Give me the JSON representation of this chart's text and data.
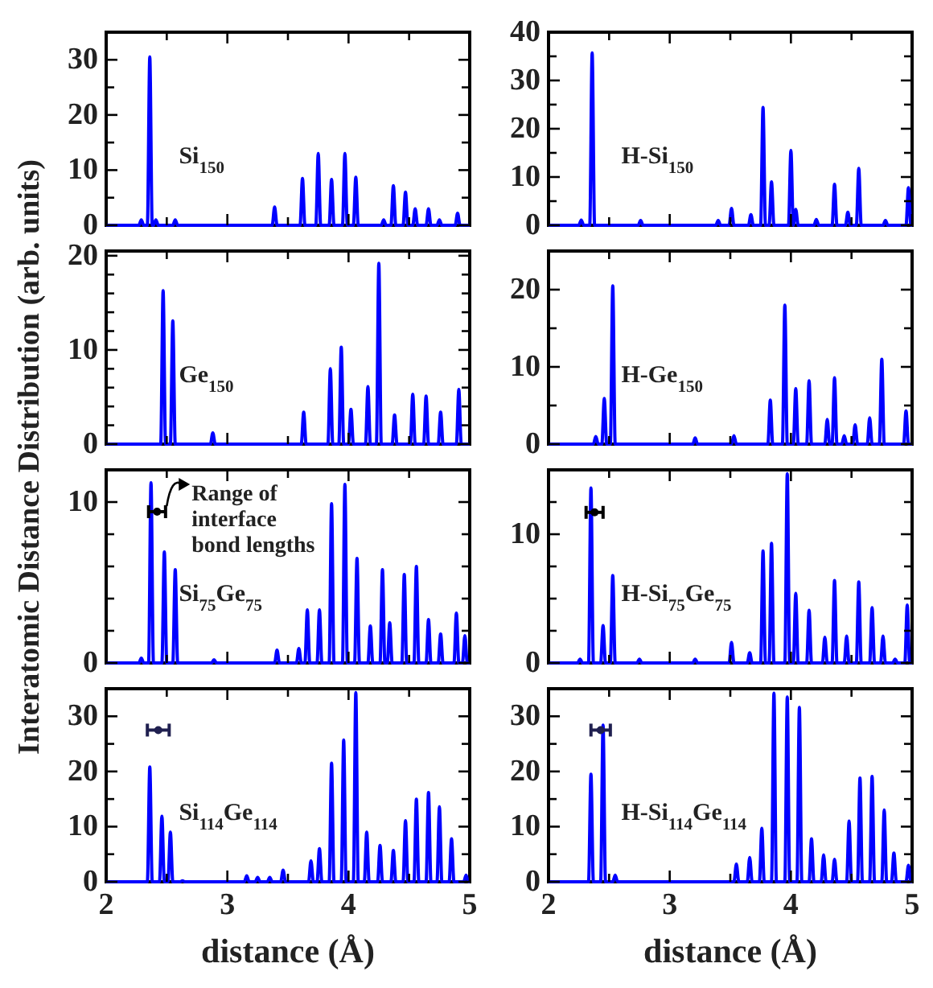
{
  "chart_data": [
    {
      "type": "line",
      "title": "Si$_{150}$",
      "ylabel": "Interatomic Distance Distribution (arb. units)",
      "xlim": [
        2,
        5
      ],
      "xticks": [
        2,
        {
          "value": 2.5,
          "label": null
        },
        3,
        {
          "value": 3.5,
          "label": null
        },
        4,
        {
          "value": 4.5,
          "label": null
        },
        5
      ],
      "ylim": [
        0,
        35
      ],
      "yticks": [
        0,
        {
          "value": 5,
          "label": null
        },
        10,
        {
          "value": 15,
          "label": null
        },
        20,
        {
          "value": 25,
          "label": null
        },
        30
      ],
      "tick_labels": "y",
      "series": [
        {
          "color": "#0000ff",
          "x": [
            2,
            2.27,
            2.29,
            2.31,
            2.34,
            2.36,
            2.38,
            2.39,
            2.41,
            2.43,
            2.55,
            2.57,
            2.59,
            3.37,
            3.39,
            3.41,
            3.6,
            3.62,
            3.64,
            3.73,
            3.75,
            3.77,
            3.84,
            3.86,
            3.88,
            3.95,
            3.97,
            3.99,
            4.04,
            4.06,
            4.08,
            4.27,
            4.29,
            4.31,
            4.35,
            4.37,
            4.39,
            4.45,
            4.47,
            4.49,
            4.53,
            4.55,
            4.57,
            4.64,
            4.66,
            4.68,
            4.73,
            4.75,
            4.77,
            4.88,
            4.9,
            4.92,
            5
          ],
          "values": [
            0,
            0,
            1,
            0,
            0,
            30.5,
            0,
            0,
            1,
            0,
            0,
            1,
            0,
            0,
            3.3,
            0,
            0,
            8.5,
            0,
            0,
            13,
            0,
            0,
            8.3,
            0,
            0,
            13,
            0,
            0,
            8.7,
            0,
            0,
            1,
            0,
            0,
            7.2,
            0,
            0,
            6,
            0,
            0,
            3,
            0,
            0,
            3,
            0,
            0,
            1,
            0,
            0,
            2.2,
            0,
            0
          ]
        }
      ]
    },
    {
      "type": "line",
      "title": "H-Si$_{150}$",
      "xlim": [
        2,
        5
      ],
      "xticks": [
        2,
        {
          "value": 2.5,
          "label": null
        },
        3,
        {
          "value": 3.5,
          "label": null
        },
        4,
        {
          "value": 4.5,
          "label": null
        },
        5
      ],
      "ylim": [
        0,
        40
      ],
      "yticks": [
        0,
        {
          "value": 5,
          "label": null
        },
        10,
        {
          "value": 15,
          "label": null
        },
        20,
        {
          "value": 25,
          "label": null
        },
        30,
        {
          "value": 35,
          "label": null
        },
        40
      ],
      "tick_labels": "y",
      "series": [
        {
          "color": "#0000ff",
          "x": [
            2,
            2.25,
            2.27,
            2.29,
            2.34,
            2.36,
            2.38,
            2.74,
            2.76,
            2.78,
            3.38,
            3.4,
            3.42,
            3.49,
            3.51,
            3.53,
            3.65,
            3.67,
            3.69,
            3.75,
            3.77,
            3.79,
            3.82,
            3.84,
            3.86,
            3.98,
            4,
            4.02,
            4.04,
            4.06,
            4.19,
            4.21,
            4.23,
            4.34,
            4.36,
            4.38,
            4.45,
            4.47,
            4.49,
            4.54,
            4.56,
            4.58,
            4.76,
            4.78,
            4.8,
            4.95,
            4.97,
            4.99,
            5
          ],
          "values": [
            0,
            0,
            1.1,
            0,
            0,
            35.7,
            0,
            0,
            1,
            0,
            0,
            1,
            0,
            0,
            3.5,
            0,
            0,
            2.2,
            0,
            0,
            24.4,
            0,
            0,
            9,
            0,
            0,
            15.5,
            0,
            3.3,
            0,
            0,
            1.2,
            0,
            0,
            8.5,
            0,
            0,
            2.7,
            0,
            0,
            11.8,
            0,
            0,
            1,
            0,
            0,
            7.8,
            0,
            0
          ]
        }
      ]
    },
    {
      "type": "line",
      "title": "Ge$_{150}$",
      "xlim": [
        2,
        5
      ],
      "xticks": [
        2,
        {
          "value": 2.5,
          "label": null
        },
        3,
        {
          "value": 3.5,
          "label": null
        },
        4,
        {
          "value": 4.5,
          "label": null
        },
        5
      ],
      "ylim": [
        0,
        20.5
      ],
      "yticks": [
        0,
        {
          "value": 2,
          "label": null
        },
        {
          "value": 4,
          "label": null
        },
        {
          "value": 6,
          "label": null
        },
        {
          "value": 8,
          "label": null
        },
        10,
        {
          "value": 12,
          "label": null
        },
        {
          "value": 14,
          "label": null
        },
        {
          "value": 16,
          "label": null
        },
        {
          "value": 18,
          "label": null
        },
        20
      ],
      "tick_labels": "y",
      "series": [
        {
          "color": "#0000ff",
          "x": [
            2,
            2.45,
            2.47,
            2.49,
            2.53,
            2.55,
            2.57,
            2.86,
            2.88,
            2.9,
            3.61,
            3.63,
            3.65,
            3.83,
            3.85,
            3.87,
            3.92,
            3.94,
            3.96,
            4,
            4.02,
            4.04,
            4.14,
            4.16,
            4.18,
            4.23,
            4.25,
            4.27,
            4.36,
            4.38,
            4.4,
            4.51,
            4.53,
            4.55,
            4.62,
            4.64,
            4.66,
            4.74,
            4.76,
            4.78,
            4.89,
            4.91,
            4.93,
            5
          ],
          "values": [
            0,
            0,
            16.3,
            0,
            0,
            13.1,
            0,
            0,
            1.2,
            0,
            0,
            3.4,
            0,
            0,
            8,
            0,
            0,
            10.3,
            0,
            0,
            3.7,
            0,
            0,
            6.1,
            0,
            0,
            19.2,
            0,
            0,
            3.1,
            0,
            0,
            5.3,
            0,
            0,
            5.1,
            0,
            0,
            3.4,
            0,
            0,
            5.8,
            0,
            0
          ]
        }
      ]
    },
    {
      "type": "line",
      "title": "H-Ge$_{150}$",
      "xlim": [
        2,
        5
      ],
      "xticks": [
        2,
        {
          "value": 2.5,
          "label": null
        },
        3,
        {
          "value": 3.5,
          "label": null
        },
        4,
        {
          "value": 4.5,
          "label": null
        },
        5
      ],
      "ylim": [
        0,
        25
      ],
      "yticks": [
        0,
        {
          "value": 5,
          "label": null
        },
        10,
        {
          "value": 15,
          "label": null
        },
        20
      ],
      "tick_labels": "y",
      "series": [
        {
          "color": "#0000ff",
          "x": [
            2,
            2.37,
            2.39,
            2.41,
            2.44,
            2.46,
            2.48,
            2.51,
            2.53,
            2.55,
            3.19,
            3.21,
            3.23,
            3.51,
            3.53,
            3.55,
            3.81,
            3.83,
            3.85,
            3.93,
            3.95,
            3.97,
            4.02,
            4.04,
            4.06,
            4.13,
            4.15,
            4.17,
            4.28,
            4.3,
            4.32,
            4.34,
            4.36,
            4.38,
            4.42,
            4.44,
            4.46,
            4.51,
            4.53,
            4.55,
            4.63,
            4.65,
            4.67,
            4.73,
            4.75,
            4.77,
            4.93,
            4.95,
            4.97,
            5
          ],
          "values": [
            0,
            0,
            1,
            0,
            0,
            5.9,
            0,
            0,
            20.5,
            0,
            0,
            0.8,
            0,
            0,
            1.1,
            0,
            0,
            5.7,
            0,
            0,
            18,
            0,
            0,
            7.2,
            0,
            0,
            8.2,
            0,
            0,
            3.2,
            0,
            0,
            8.6,
            0,
            0,
            1.1,
            0,
            0,
            2.5,
            0,
            0,
            3.4,
            0,
            0,
            11,
            0,
            0,
            4.3,
            0,
            0
          ]
        }
      ]
    },
    {
      "type": "line",
      "title": "Si$_{75}$Ge$_{75}$",
      "annotations": [
        {
          "text": "Range of interface bond lengths",
          "x": 2.42,
          "y": 9.35
        }
      ],
      "xlim": [
        2,
        5
      ],
      "xticks": [
        2,
        {
          "value": 2.5,
          "label": null
        },
        3,
        {
          "value": 3.5,
          "label": null
        },
        4,
        {
          "value": 4.5,
          "label": null
        },
        5
      ],
      "ylim": [
        0,
        12
      ],
      "yticks": [
        0,
        {
          "value": 2,
          "label": null
        },
        {
          "value": 4,
          "label": null
        },
        {
          "value": 6,
          "label": null
        },
        {
          "value": 8,
          "label": null
        },
        10
      ],
      "tick_labels": "y",
      "series": [
        {
          "color": "#0000ff",
          "x": [
            2,
            2.27,
            2.29,
            2.31,
            2.35,
            2.37,
            2.39,
            2.46,
            2.48,
            2.5,
            2.55,
            2.57,
            2.59,
            2.87,
            2.89,
            2.91,
            3.39,
            3.41,
            3.43,
            3.57,
            3.59,
            3.61,
            3.64,
            3.66,
            3.68,
            3.74,
            3.76,
            3.78,
            3.84,
            3.86,
            3.88,
            3.95,
            3.97,
            3.99,
            4.05,
            4.07,
            4.09,
            4.16,
            4.18,
            4.2,
            4.26,
            4.28,
            4.3,
            4.32,
            4.34,
            4.36,
            4.44,
            4.46,
            4.48,
            4.54,
            4.56,
            4.58,
            4.64,
            4.66,
            4.68,
            4.74,
            4.76,
            4.78,
            4.87,
            4.89,
            4.91,
            4.94,
            4.96,
            4.98,
            5
          ],
          "values": [
            0,
            0,
            0.3,
            0,
            0,
            11.2,
            0,
            0,
            6.9,
            0,
            0,
            5.8,
            0,
            0,
            0.2,
            0,
            0,
            0.8,
            0,
            0,
            0.9,
            0,
            0,
            3.3,
            0,
            0,
            3.3,
            0,
            0,
            9.9,
            0,
            0,
            11.1,
            0,
            0,
            6.5,
            0,
            0,
            2.3,
            0,
            0,
            5.8,
            0,
            0,
            2.5,
            0,
            0,
            5.5,
            0,
            0,
            6,
            0,
            0,
            2.7,
            0,
            0,
            1.8,
            0,
            0,
            3.1,
            0,
            0,
            1.7,
            0,
            0
          ]
        },
        {
          "type": "scatter",
          "marker": "circle",
          "color": "#000000",
          "x": [
            2.42
          ],
          "values": [
            9.4
          ],
          "xerrors": [
            0.07
          ]
        }
      ]
    },
    {
      "type": "line",
      "title": "H-Si$_{75}$Ge$_{75}$",
      "xlim": [
        2,
        5
      ],
      "xticks": [
        2,
        {
          "value": 2.5,
          "label": null
        },
        3,
        {
          "value": 3.5,
          "label": null
        },
        4,
        {
          "value": 4.5,
          "label": null
        },
        5
      ],
      "ylim": [
        0,
        15
      ],
      "yticks": [
        0,
        {
          "value": 2.5,
          "label": null
        },
        {
          "value": 5,
          "label": null
        },
        {
          "value": 7.5,
          "label": null
        },
        10,
        {
          "value": 12.5,
          "label": null
        }
      ],
      "tick_labels": "y",
      "series": [
        {
          "color": "#0000ff",
          "x": [
            2,
            2.24,
            2.26,
            2.28,
            2.33,
            2.35,
            2.37,
            2.43,
            2.45,
            2.47,
            2.51,
            2.53,
            2.55,
            2.73,
            2.75,
            2.77,
            3.19,
            3.21,
            3.23,
            3.49,
            3.51,
            3.53,
            3.64,
            3.66,
            3.68,
            3.75,
            3.77,
            3.79,
            3.82,
            3.84,
            3.86,
            3.95,
            3.97,
            3.99,
            4.02,
            4.04,
            4.06,
            4.13,
            4.15,
            4.17,
            4.26,
            4.28,
            4.3,
            4.34,
            4.36,
            4.38,
            4.44,
            4.46,
            4.48,
            4.54,
            4.56,
            4.58,
            4.65,
            4.67,
            4.69,
            4.74,
            4.76,
            4.78,
            4.84,
            4.86,
            4.88,
            4.94,
            4.96,
            4.98,
            5
          ],
          "values": [
            0,
            0,
            0.3,
            0,
            0,
            13.6,
            0,
            0,
            2.9,
            0,
            0,
            6.8,
            0,
            0,
            0.3,
            0,
            0,
            0.3,
            0,
            0,
            1.6,
            0,
            0,
            0.8,
            0,
            0,
            8.7,
            0,
            0,
            9.3,
            0,
            0,
            14.7,
            0,
            0,
            5.4,
            0,
            0,
            4.1,
            0,
            0,
            2,
            0,
            0,
            6.4,
            0,
            0,
            2.1,
            0,
            0,
            6.3,
            0,
            0,
            4.3,
            0,
            0,
            2.1,
            0,
            0,
            0.3,
            0,
            0,
            4.5,
            0,
            0
          ]
        },
        {
          "type": "scatter",
          "marker": "circle",
          "color": "#000000",
          "x": [
            2.38
          ],
          "values": [
            11.7
          ],
          "xerrors": [
            0.07
          ]
        }
      ]
    },
    {
      "type": "line",
      "title": "Si$_{114}$Ge$_{114}$",
      "xlabel": "distance (Å)",
      "xlim": [
        2,
        5
      ],
      "xticks": [
        2,
        {
          "value": 2.5,
          "label": null
        },
        3,
        {
          "value": 3.5,
          "label": null
        },
        4,
        {
          "value": 4.5,
          "label": null
        },
        5
      ],
      "ylim": [
        0,
        35
      ],
      "yticks": [
        0,
        {
          "value": 5,
          "label": null
        },
        10,
        {
          "value": 15,
          "label": null
        },
        20,
        {
          "value": 25,
          "label": null
        },
        30
      ],
      "series": [
        {
          "color": "#0000ff",
          "x": [
            2,
            2.34,
            2.36,
            2.38,
            2.44,
            2.46,
            2.48,
            2.51,
            2.53,
            2.55,
            2.61,
            2.63,
            2.65,
            3.14,
            3.16,
            3.18,
            3.23,
            3.25,
            3.27,
            3.33,
            3.35,
            3.37,
            3.44,
            3.46,
            3.48,
            3.67,
            3.69,
            3.71,
            3.74,
            3.76,
            3.78,
            3.84,
            3.86,
            3.88,
            3.94,
            3.96,
            3.98,
            4.04,
            4.06,
            4.08,
            4.13,
            4.15,
            4.17,
            4.24,
            4.26,
            4.28,
            4.35,
            4.37,
            4.39,
            4.45,
            4.47,
            4.49,
            4.54,
            4.56,
            4.58,
            4.64,
            4.66,
            4.68,
            4.73,
            4.75,
            4.77,
            4.83,
            4.85,
            4.87,
            4.95,
            4.97,
            4.99,
            5
          ],
          "values": [
            0,
            0,
            20.8,
            0,
            0,
            11.9,
            0,
            0,
            9,
            0,
            0,
            0.2,
            0,
            0,
            1.1,
            0,
            0,
            0.8,
            0,
            0,
            0.8,
            0,
            0,
            2.1,
            0,
            0,
            3.8,
            0,
            0,
            6,
            0,
            0,
            21.5,
            0,
            0,
            25.7,
            0,
            0,
            34.3,
            0,
            0,
            9,
            0,
            0,
            6.6,
            0,
            0,
            5.7,
            0,
            0,
            11.1,
            0,
            0,
            15,
            0,
            0,
            16.2,
            0,
            0,
            13.6,
            0,
            0,
            7.8,
            0,
            0,
            1.2,
            0,
            0
          ]
        },
        {
          "type": "scatter",
          "marker": "circle",
          "color": "#202050",
          "x": [
            2.43
          ],
          "values": [
            27.5
          ],
          "xerrors": [
            0.09
          ]
        }
      ]
    },
    {
      "type": "line",
      "title": "H-Si$_{114}$Ge$_{114}$",
      "xlabel": "distance (Å)",
      "xlim": [
        2,
        5
      ],
      "xticks": [
        2,
        {
          "value": 2.5,
          "label": null
        },
        3,
        {
          "value": 3.5,
          "label": null
        },
        4,
        {
          "value": 4.5,
          "label": null
        },
        5
      ],
      "ylim": [
        0,
        35
      ],
      "yticks": [
        0,
        {
          "value": 5,
          "label": null
        },
        10,
        {
          "value": 15,
          "label": null
        },
        20,
        {
          "value": 25,
          "label": null
        },
        30
      ],
      "series": [
        {
          "color": "#0000ff",
          "x": [
            2,
            2.33,
            2.35,
            2.37,
            2.43,
            2.45,
            2.47,
            2.53,
            2.55,
            2.57,
            3.53,
            3.55,
            3.57,
            3.64,
            3.66,
            3.68,
            3.74,
            3.76,
            3.78,
            3.84,
            3.86,
            3.88,
            3.95,
            3.97,
            3.99,
            4.05,
            4.07,
            4.09,
            4.15,
            4.17,
            4.19,
            4.25,
            4.27,
            4.29,
            4.34,
            4.36,
            4.38,
            4.46,
            4.48,
            4.5,
            4.55,
            4.57,
            4.59,
            4.65,
            4.67,
            4.69,
            4.75,
            4.77,
            4.79,
            4.83,
            4.85,
            4.87,
            4.95,
            4.97,
            4.99,
            5
          ],
          "values": [
            0,
            0,
            19.5,
            0,
            0,
            28.4,
            0,
            0,
            1.2,
            0,
            0,
            3.2,
            0,
            0,
            4.4,
            0,
            0,
            9.7,
            0,
            0,
            34.2,
            0,
            0,
            33.5,
            0,
            0,
            31.6,
            0,
            0,
            7.8,
            0,
            0,
            4.9,
            0,
            0,
            4.1,
            0,
            0,
            11,
            0,
            0,
            18.8,
            0,
            0,
            19.1,
            0,
            0,
            13,
            0,
            0,
            5.2,
            0,
            0,
            3,
            0,
            0
          ]
        },
        {
          "type": "scatter",
          "marker": "circle",
          "color": "#202050",
          "x": [
            2.43
          ],
          "values": [
            27.5
          ],
          "xerrors": [
            0.08
          ]
        }
      ]
    }
  ]
}
